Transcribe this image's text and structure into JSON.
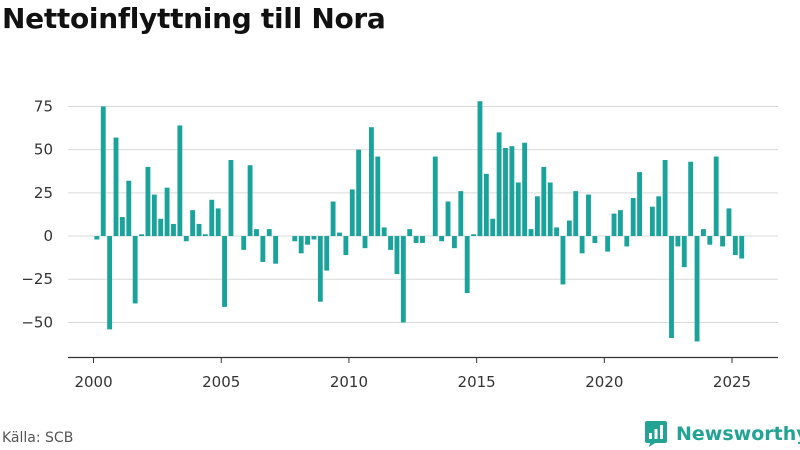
{
  "chart_data": {
    "type": "bar",
    "title": "Nettoinflyttning till Nora",
    "xlabel": "",
    "ylabel": "",
    "bar_color": "#1aa39a",
    "xlim": [
      1999.0,
      2026.8
    ],
    "ylim": [
      -70,
      88
    ],
    "x_ticks": [
      2000,
      2005,
      2010,
      2015,
      2020,
      2025
    ],
    "y_ticks": [
      -50,
      -25,
      0,
      25,
      50,
      75
    ],
    "grid": "horizontal",
    "legend": "none",
    "series": [
      {
        "x": [
          2000.13,
          2000.38,
          2000.63,
          2000.88,
          2001.13,
          2001.38,
          2001.63,
          2001.88,
          2002.13,
          2002.38,
          2002.63,
          2002.88,
          2003.13,
          2003.38,
          2003.63,
          2003.88,
          2004.13,
          2004.38,
          2004.63,
          2004.88,
          2005.13,
          2005.38,
          2005.63,
          2005.88,
          2006.13,
          2006.38,
          2006.63,
          2006.88,
          2007.13,
          2007.38,
          2007.63,
          2007.88,
          2008.13,
          2008.38,
          2008.63,
          2008.88,
          2009.13,
          2009.38,
          2009.63,
          2009.88,
          2010.13,
          2010.38,
          2010.63,
          2010.88,
          2011.13,
          2011.38,
          2011.63,
          2011.88,
          2012.13,
          2012.38,
          2012.63,
          2012.88,
          2013.13,
          2013.38,
          2013.63,
          2013.88,
          2014.13,
          2014.38,
          2014.63,
          2014.88,
          2015.13,
          2015.38,
          2015.63,
          2015.88,
          2016.13,
          2016.38,
          2016.63,
          2016.88,
          2017.13,
          2017.38,
          2017.63,
          2017.88,
          2018.13,
          2018.38,
          2018.63,
          2018.88,
          2019.13,
          2019.38,
          2019.63,
          2019.88,
          2020.13,
          2020.38,
          2020.63,
          2020.88,
          2021.13,
          2021.38,
          2021.63,
          2021.88,
          2022.13,
          2022.38,
          2022.63,
          2022.88,
          2023.13,
          2023.38,
          2023.63,
          2023.88,
          2024.13,
          2024.38,
          2024.63,
          2024.88,
          2025.13,
          2025.38
        ],
        "values": [
          -2,
          75,
          -54,
          57,
          11,
          32,
          -39,
          1,
          40,
          24,
          10,
          28,
          7,
          64,
          -3,
          15,
          7,
          1,
          21,
          16,
          -41,
          44,
          0,
          -8,
          41,
          4,
          -15,
          4,
          -16,
          0,
          0,
          -3,
          -10,
          -5,
          -2,
          -38,
          -20,
          20,
          2,
          -11,
          27,
          50,
          -7,
          63,
          46,
          5,
          -8,
          -22,
          -50,
          4,
          -4,
          -4,
          0,
          46,
          -3,
          20,
          -7,
          26,
          -33,
          1,
          78,
          36,
          10,
          60,
          51,
          52,
          31,
          54,
          4,
          23,
          40,
          31,
          5,
          -28,
          9,
          26,
          -10,
          24,
          -4,
          0,
          -9,
          13,
          15,
          -6,
          22,
          37,
          0,
          17,
          23,
          44,
          -59,
          -6,
          -18,
          43,
          -61,
          4,
          -5,
          46,
          -6,
          16,
          -11,
          -13
        ]
      }
    ]
  },
  "source_label": "Källa: SCB",
  "brand": {
    "name": "Newsworthy",
    "icon": "newsworthy-logo-icon",
    "color": "#23a393"
  }
}
